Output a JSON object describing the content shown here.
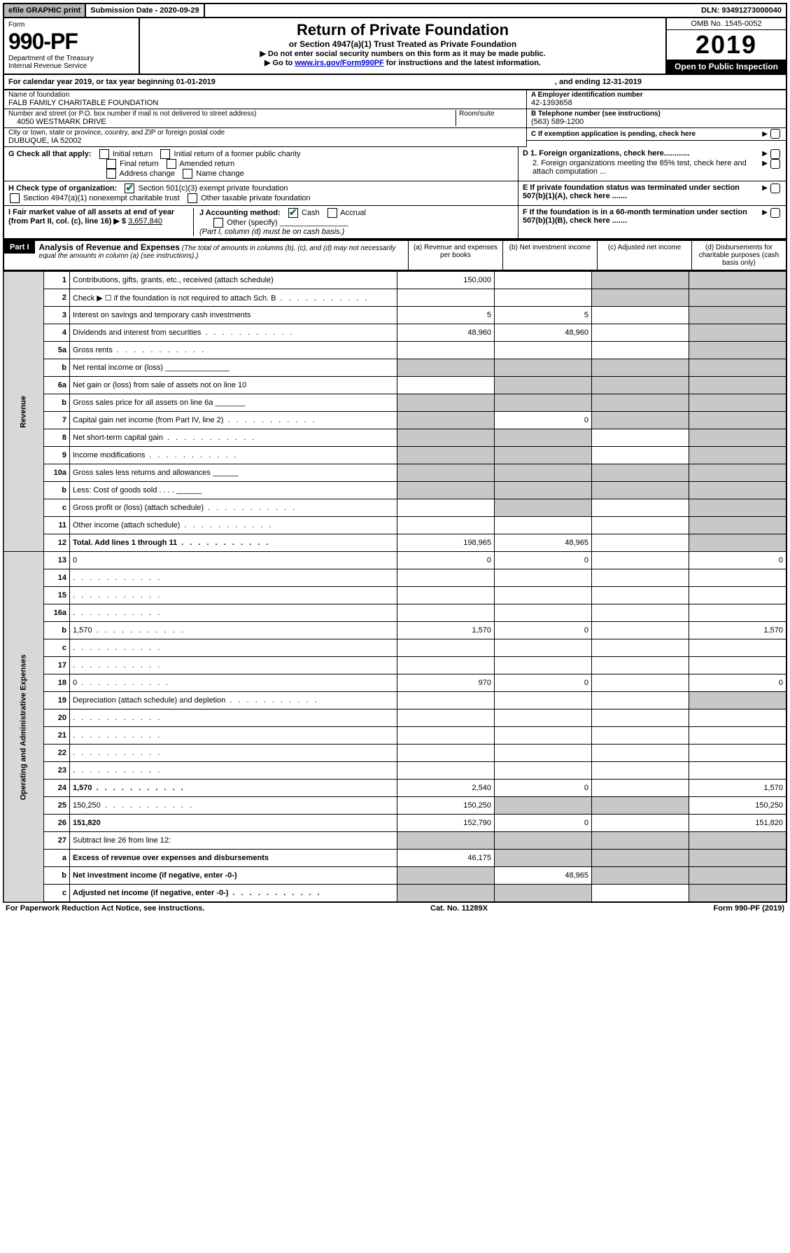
{
  "topbar": {
    "efile": "efile GRAPHIC print",
    "submission": "Submission Date - 2020-09-29",
    "dln": "DLN: 93491273000040"
  },
  "header": {
    "form_label": "Form",
    "form_number": "990-PF",
    "dept": "Department of the Treasury",
    "irs": "Internal Revenue Service",
    "title": "Return of Private Foundation",
    "subtitle": "or Section 4947(a)(1) Trust Treated as Private Foundation",
    "note1": "▶ Do not enter social security numbers on this form as it may be made public.",
    "note2_pre": "▶ Go to ",
    "note2_link": "www.irs.gov/Form990PF",
    "note2_post": " for instructions and the latest information.",
    "omb": "OMB No. 1545-0052",
    "year": "2019",
    "open": "Open to Public Inspection"
  },
  "calyear": {
    "text": "For calendar year 2019, or tax year beginning 01-01-2019",
    "end": ", and ending 12-31-2019"
  },
  "entity": {
    "name_label": "Name of foundation",
    "name": "FALB FAMILY CHARITABLE FOUNDATION",
    "addr_label": "Number and street (or P.O. box number if mail is not delivered to street address)",
    "room_label": "Room/suite",
    "addr": "4050 WESTMARK DRIVE",
    "city_label": "City or town, state or province, country, and ZIP or foreign postal code",
    "city": "DUBUQUE, IA  52002",
    "ein_label": "A Employer identification number",
    "ein": "42-1393658",
    "phone_label": "B Telephone number (see instructions)",
    "phone": "(563) 589-1200",
    "c_label": "C If exemption application is pending, check here"
  },
  "checks": {
    "g_label": "G Check all that apply:",
    "g_items": [
      "Initial return",
      "Initial return of a former public charity",
      "Final return",
      "Amended return",
      "Address change",
      "Name change"
    ],
    "h_label": "H Check type of organization:",
    "h1": "Section 501(c)(3) exempt private foundation",
    "h2": "Section 4947(a)(1) nonexempt charitable trust",
    "h3": "Other taxable private foundation",
    "i_label": "I Fair market value of all assets at end of year (from Part II, col. (c), line 16) ▶ $",
    "i_val": "3,657,840",
    "j_label": "J Accounting method:",
    "j_cash": "Cash",
    "j_accrual": "Accrual",
    "j_other": "Other (specify)",
    "j_note": "(Part I, column (d) must be on cash basis.)",
    "d1": "D 1. Foreign organizations, check here............",
    "d2": "2. Foreign organizations meeting the 85% test, check here and attach computation ...",
    "e": "E If private foundation status was terminated under section 507(b)(1)(A), check here .......",
    "f": "F If the foundation is in a 60-month termination under section 507(b)(1)(B), check here ......."
  },
  "part1": {
    "label": "Part I",
    "title": "Analysis of Revenue and Expenses",
    "note": "(The total of amounts in columns (b), (c), and (d) may not necessarily equal the amounts in column (a) (see instructions).)",
    "cols": {
      "a": "(a) Revenue and expenses per books",
      "b": "(b) Net investment income",
      "c": "(c) Adjusted net income",
      "d": "(d) Disbursements for charitable purposes (cash basis only)"
    }
  },
  "sections": {
    "revenue": "Revenue",
    "expenses": "Operating and Administrative Expenses"
  },
  "rows": [
    {
      "n": "1",
      "d": "Contributions, gifts, grants, etc., received (attach schedule)",
      "a": "150,000",
      "b": "",
      "cs": true,
      "ds": true
    },
    {
      "n": "2",
      "d": "Check ▶ ☐ if the foundation is not required to attach Sch. B",
      "a": "",
      "b": "",
      "cs": true,
      "ds": true,
      "dots": true
    },
    {
      "n": "3",
      "d": "Interest on savings and temporary cash investments",
      "a": "5",
      "b": "5",
      "cs": false,
      "ds": true
    },
    {
      "n": "4",
      "d": "Dividends and interest from securities",
      "a": "48,960",
      "b": "48,960",
      "cs": false,
      "ds": true,
      "dots": true
    },
    {
      "n": "5a",
      "d": "Gross rents",
      "a": "",
      "b": "",
      "cs": false,
      "ds": true,
      "dots": true
    },
    {
      "n": "b",
      "d": "Net rental income or (loss) _______________",
      "as": true,
      "bs": true,
      "cs": true,
      "ds": true
    },
    {
      "n": "6a",
      "d": "Net gain or (loss) from sale of assets not on line 10",
      "a": "",
      "bs": true,
      "cs": true,
      "ds": true
    },
    {
      "n": "b",
      "d": "Gross sales price for all assets on line 6a _______",
      "as": true,
      "bs": true,
      "cs": true,
      "ds": true
    },
    {
      "n": "7",
      "d": "Capital gain net income (from Part IV, line 2)",
      "as": true,
      "b": "0",
      "cs": true,
      "ds": true,
      "dots": true
    },
    {
      "n": "8",
      "d": "Net short-term capital gain",
      "as": true,
      "bs": true,
      "cs": false,
      "ds": true,
      "dots": true
    },
    {
      "n": "9",
      "d": "Income modifications",
      "as": true,
      "bs": true,
      "cs": false,
      "ds": true,
      "dots": true
    },
    {
      "n": "10a",
      "d": "Gross sales less returns and allowances ______",
      "as": true,
      "bs": true,
      "cs": true,
      "ds": true
    },
    {
      "n": "b",
      "d": "Less: Cost of goods sold   . . . .  ______",
      "as": true,
      "bs": true,
      "cs": true,
      "ds": true
    },
    {
      "n": "c",
      "d": "Gross profit or (loss) (attach schedule)",
      "a": "",
      "bs": true,
      "cs": false,
      "ds": true,
      "dots": true
    },
    {
      "n": "11",
      "d": "Other income (attach schedule)",
      "a": "",
      "b": "",
      "cs": false,
      "ds": true,
      "dots": true
    },
    {
      "n": "12",
      "d": "Total. Add lines 1 through 11",
      "a": "198,965",
      "b": "48,965",
      "cs": false,
      "ds": true,
      "bold": true,
      "dots": true
    },
    {
      "n": "13",
      "d": "0",
      "a": "0",
      "b": "0",
      "c": ""
    },
    {
      "n": "14",
      "d": "",
      "a": "",
      "b": "",
      "c": "",
      "dots": true
    },
    {
      "n": "15",
      "d": "",
      "a": "",
      "b": "",
      "c": "",
      "dots": true
    },
    {
      "n": "16a",
      "d": "",
      "a": "",
      "b": "",
      "c": "",
      "dots": true
    },
    {
      "n": "b",
      "d": "1,570",
      "a": "1,570",
      "b": "0",
      "c": "",
      "dots": true
    },
    {
      "n": "c",
      "d": "",
      "a": "",
      "b": "",
      "c": "",
      "dots": true
    },
    {
      "n": "17",
      "d": "",
      "a": "",
      "b": "",
      "c": "",
      "dots": true
    },
    {
      "n": "18",
      "d": "0",
      "a": "970",
      "b": "0",
      "c": "",
      "dots": true
    },
    {
      "n": "19",
      "d": "Depreciation (attach schedule) and depletion",
      "a": "",
      "b": "",
      "c": "",
      "ds": true,
      "dots": true
    },
    {
      "n": "20",
      "d": "",
      "a": "",
      "b": "",
      "c": "",
      "dots": true
    },
    {
      "n": "21",
      "d": "",
      "a": "",
      "b": "",
      "c": "",
      "dots": true
    },
    {
      "n": "22",
      "d": "",
      "a": "",
      "b": "",
      "c": "",
      "dots": true
    },
    {
      "n": "23",
      "d": "",
      "a": "",
      "b": "",
      "c": "",
      "dots": true
    },
    {
      "n": "24",
      "d": "1,570",
      "a": "2,540",
      "b": "0",
      "c": "",
      "bold": true,
      "dots": true
    },
    {
      "n": "25",
      "d": "150,250",
      "a": "150,250",
      "bs": true,
      "cs": true,
      "dots": true
    },
    {
      "n": "26",
      "d": "151,820",
      "a": "152,790",
      "b": "0",
      "c": "",
      "bold": true
    },
    {
      "n": "27",
      "d": "Subtract line 26 from line 12:",
      "as": true,
      "bs": true,
      "cs": true,
      "ds": true
    },
    {
      "n": "a",
      "d": "Excess of revenue over expenses and disbursements",
      "a": "46,175",
      "bs": true,
      "cs": true,
      "ds": true,
      "bold": true
    },
    {
      "n": "b",
      "d": "Net investment income (if negative, enter -0-)",
      "as": true,
      "b": "48,965",
      "cs": true,
      "ds": true,
      "bold": true
    },
    {
      "n": "c",
      "d": "Adjusted net income (if negative, enter -0-)",
      "as": true,
      "bs": true,
      "c": "",
      "ds": true,
      "bold": true,
      "dots": true
    }
  ],
  "footer": {
    "left": "For Paperwork Reduction Act Notice, see instructions.",
    "mid": "Cat. No. 11289X",
    "right": "Form 990-PF (2019)"
  },
  "colors": {
    "shade": "#c8c8c8",
    "vert": "#d8d8d8",
    "topgray": "#b8b8b8"
  }
}
